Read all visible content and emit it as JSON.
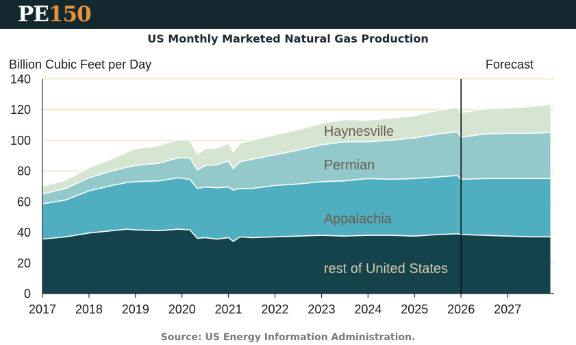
{
  "header": {
    "logo_pe": "PE",
    "logo_num": "150"
  },
  "colors": {
    "rest": "#15434b",
    "appalachia": "#50aec1",
    "permian": "#93c9ca",
    "haynesville": "#d6e5d2",
    "grid": "#f1dfb8",
    "forecast_line": "#111111",
    "label_dark": "#6b5b4b",
    "label_light": "#d6c9b0"
  },
  "chart_data": {
    "type": "area",
    "stacked": true,
    "title": "US Monthly Marketed Natural Gas Production",
    "ylabel": "Billion Cubic Feet per Day",
    "xlabel": "",
    "ylim": [
      0,
      140
    ],
    "xlim": [
      2017,
      2027.92
    ],
    "yticks": [
      0,
      20,
      40,
      60,
      80,
      100,
      120,
      140
    ],
    "xticks": [
      2017,
      2018,
      2019,
      2020,
      2021,
      2022,
      2023,
      2024,
      2025,
      2026,
      2027
    ],
    "forecast_start": 2026,
    "forecast_label": "Forecast",
    "source": "Source: US Energy Information Administration.",
    "x": [
      2017.0,
      2017.5,
      2018.0,
      2018.5,
      2018.83,
      2019.0,
      2019.5,
      2019.92,
      2020.17,
      2020.33,
      2020.5,
      2020.75,
      2021.0,
      2021.1,
      2021.25,
      2021.5,
      2022.0,
      2022.5,
      2023.0,
      2023.5,
      2024.0,
      2024.5,
      2025.0,
      2025.5,
      2025.92,
      2026.0,
      2026.5,
      2027.0,
      2027.5,
      2027.92
    ],
    "series": [
      {
        "name": "rest of United States",
        "values": [
          35.5,
          37.0,
          39.5,
          41.0,
          42.0,
          41.5,
          41.0,
          42.0,
          41.5,
          36.0,
          36.5,
          35.5,
          36.5,
          34.0,
          37.0,
          36.5,
          37.0,
          37.5,
          38.0,
          37.5,
          38.0,
          38.0,
          37.5,
          38.5,
          39.0,
          38.5,
          38.0,
          37.5,
          37.0,
          37.0
        ]
      },
      {
        "name": "Appalachia",
        "values": [
          23.0,
          24.0,
          27.5,
          29.5,
          30.5,
          31.5,
          32.5,
          33.5,
          33.0,
          32.5,
          33.0,
          33.5,
          33.0,
          33.5,
          31.5,
          32.0,
          33.5,
          34.0,
          35.0,
          36.0,
          37.0,
          36.5,
          37.5,
          37.5,
          38.0,
          36.0,
          37.0,
          37.5,
          38.0,
          38.0
        ]
      },
      {
        "name": "Permian",
        "values": [
          6.5,
          7.5,
          8.5,
          9.5,
          10.0,
          10.5,
          11.5,
          13.0,
          14.0,
          12.0,
          14.0,
          15.0,
          17.0,
          14.0,
          17.5,
          19.0,
          20.0,
          22.0,
          24.0,
          25.5,
          24.0,
          25.5,
          26.5,
          28.0,
          28.5,
          27.5,
          29.0,
          29.5,
          29.5,
          30.0
        ]
      },
      {
        "name": "Haynesville",
        "values": [
          5.0,
          5.5,
          6.5,
          8.0,
          10.0,
          11.0,
          11.5,
          12.0,
          11.5,
          10.5,
          11.0,
          11.0,
          11.5,
          11.0,
          12.0,
          12.5,
          13.0,
          13.5,
          14.0,
          14.5,
          14.0,
          14.5,
          14.5,
          15.5,
          16.0,
          16.0,
          16.5,
          16.5,
          17.5,
          18.5
        ]
      }
    ],
    "series_labels": [
      {
        "name": "Haynesville",
        "x": 2023.05,
        "y": 106
      },
      {
        "name": "Permian",
        "x": 2023.05,
        "y": 84
      },
      {
        "name": "Appalachia",
        "x": 2023.05,
        "y": 49
      },
      {
        "name": "rest of United States",
        "x": 2023.05,
        "y": 16.5
      }
    ]
  }
}
